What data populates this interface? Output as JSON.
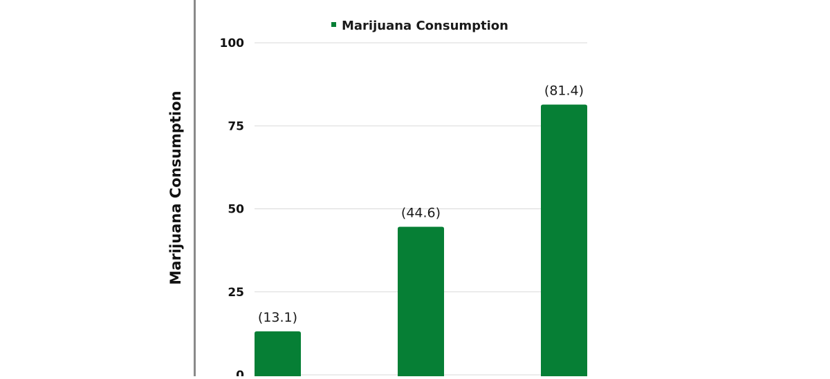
{
  "chart_data": {
    "type": "bar",
    "categories": [
      "",
      "",
      ""
    ],
    "series": [
      {
        "name": "Marijuana Consumption",
        "values": [
          13.1,
          44.6,
          81.4
        ],
        "labels": [
          "(13.1)",
          "(44.6)",
          "(81.4)"
        ]
      }
    ],
    "xlabel": "",
    "ylabel": "Marijuana Consumption",
    "ylim": [
      0,
      100
    ],
    "yticks": [
      0,
      25,
      50,
      75,
      100
    ],
    "grid": true,
    "legend_position": "top-center",
    "colors": {
      "bar": "#067f35",
      "grid": "#d9d9d9",
      "axis_text": "#111111",
      "label_text": "#1a1a1a",
      "left_rule": "#8a8a8a"
    }
  }
}
